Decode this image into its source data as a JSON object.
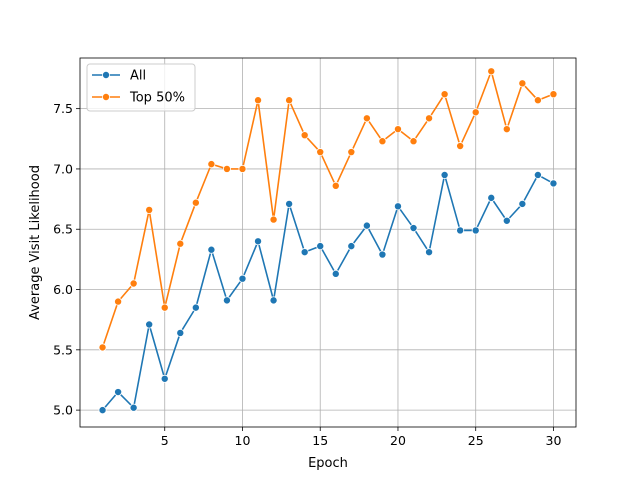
{
  "chart_data": {
    "type": "line",
    "title": "",
    "xlabel": "Epoch",
    "ylabel": "Average Visit Likelihood",
    "xlim": [
      -0.45,
      31.45
    ],
    "ylim": [
      4.86,
      7.92
    ],
    "xticks": [
      5,
      10,
      15,
      20,
      25,
      30
    ],
    "yticks": [
      5.0,
      5.5,
      6.0,
      6.5,
      7.0,
      7.5
    ],
    "ytick_labels": [
      "5.0",
      "5.5",
      "6.0",
      "6.5",
      "7.0",
      "7.5"
    ],
    "grid": true,
    "legend_position": "top-left",
    "x": [
      1,
      2,
      3,
      4,
      5,
      6,
      7,
      8,
      9,
      10,
      11,
      12,
      13,
      14,
      15,
      16,
      17,
      18,
      19,
      20,
      21,
      22,
      23,
      24,
      25,
      26,
      27,
      28,
      29,
      30
    ],
    "series": [
      {
        "name": "All",
        "color": "#1f77b4",
        "values": [
          5.0,
          5.15,
          5.02,
          5.71,
          5.26,
          5.64,
          5.85,
          6.33,
          5.91,
          6.09,
          6.4,
          5.91,
          6.71,
          6.31,
          6.36,
          6.13,
          6.36,
          6.53,
          6.29,
          6.69,
          6.51,
          6.31,
          6.95,
          6.49,
          6.49,
          6.76,
          6.57,
          6.71,
          6.95,
          6.88
        ]
      },
      {
        "name": "Top 50%",
        "color": "#ff7f0e",
        "values": [
          5.52,
          5.9,
          6.05,
          6.66,
          5.85,
          6.38,
          6.72,
          7.04,
          7.0,
          7.0,
          7.57,
          6.58,
          7.57,
          7.28,
          7.14,
          6.86,
          7.14,
          7.42,
          7.23,
          7.33,
          7.23,
          7.42,
          7.62,
          7.19,
          7.47,
          7.81,
          7.33,
          7.71,
          7.57,
          7.62
        ]
      }
    ]
  }
}
